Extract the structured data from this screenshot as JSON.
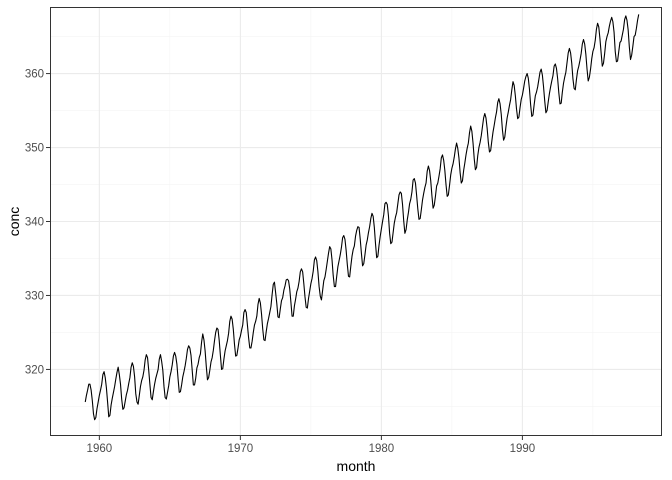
{
  "chart_data": {
    "type": "line",
    "title": "",
    "xlabel": "month",
    "ylabel": "conc",
    "xlim": [
      1956.5,
      1999.9
    ],
    "ylim": [
      311.0,
      369.0
    ],
    "x_ticks": [
      {
        "value": 1960,
        "label": "1960"
      },
      {
        "value": 1970,
        "label": "1970"
      },
      {
        "value": 1980,
        "label": "1980"
      },
      {
        "value": 1990,
        "label": "1990"
      }
    ],
    "y_ticks": [
      {
        "value": 320,
        "label": "320"
      },
      {
        "value": 330,
        "label": "330"
      },
      {
        "value": 340,
        "label": "340"
      },
      {
        "value": 350,
        "label": "350"
      },
      {
        "value": 360,
        "label": "360"
      }
    ],
    "grid": true,
    "legend": "none",
    "colors": {
      "line": "#000000",
      "grid_major": "#ebebeb",
      "grid_minor": "#f4f4f4",
      "panel_border": "#333333"
    },
    "series": [
      {
        "x_start": 1959.0,
        "x_step_months": 1,
        "values": [
          315.6,
          316.5,
          317.2,
          318.0,
          318.0,
          317.2,
          315.8,
          314.0,
          313.2,
          313.5,
          314.7,
          315.6,
          316.5,
          317.2,
          318.0,
          319.3,
          319.7,
          318.9,
          317.5,
          315.6,
          313.6,
          313.8,
          315.2,
          316.1,
          316.9,
          317.7,
          318.7,
          319.6,
          320.3,
          319.3,
          318.0,
          316.0,
          314.6,
          314.8,
          315.7,
          316.6,
          317.2,
          318.1,
          318.9,
          320.3,
          320.9,
          320.4,
          319.0,
          316.7,
          315.6,
          315.3,
          316.5,
          317.7,
          318.5,
          319.0,
          319.9,
          321.3,
          322.0,
          321.6,
          319.9,
          318.0,
          316.2,
          315.9,
          317.0,
          318.0,
          318.8,
          319.4,
          320.0,
          321.4,
          322.0,
          321.1,
          319.9,
          317.7,
          316.2,
          316.0,
          316.9,
          317.8,
          319.0,
          319.7,
          320.6,
          321.8,
          322.3,
          321.8,
          320.7,
          318.7,
          316.9,
          317.0,
          317.9,
          319.0,
          319.7,
          320.5,
          321.5,
          322.7,
          323.2,
          322.9,
          321.9,
          319.9,
          317.9,
          317.9,
          318.8,
          320.2,
          320.7,
          321.6,
          322.1,
          323.7,
          324.8,
          324.0,
          322.5,
          320.4,
          318.6,
          318.9,
          319.9,
          321.0,
          321.6,
          322.6,
          323.9,
          325.0,
          325.6,
          325.4,
          323.9,
          321.9,
          320.0,
          320.1,
          321.4,
          322.5,
          323.2,
          323.9,
          324.9,
          326.5,
          327.2,
          326.8,
          325.4,
          323.4,
          321.8,
          321.9,
          322.9,
          324.0,
          324.5,
          325.3,
          326.0,
          327.7,
          328.1,
          327.7,
          326.0,
          324.3,
          322.9,
          322.9,
          323.8,
          325.0,
          326.0,
          326.5,
          327.2,
          328.8,
          329.6,
          329.0,
          327.5,
          325.5,
          324.0,
          323.9,
          325.1,
          326.2,
          326.9,
          327.7,
          328.5,
          330.1,
          331.5,
          331.8,
          330.4,
          328.9,
          327.1,
          327.0,
          328.2,
          329.3,
          329.7,
          330.7,
          331.3,
          332.1,
          332.2,
          332.0,
          330.9,
          329.1,
          327.2,
          327.2,
          328.6,
          329.5,
          330.5,
          331.0,
          331.9,
          333.2,
          333.6,
          333.2,
          331.6,
          329.8,
          328.4,
          328.3,
          329.6,
          330.6,
          331.6,
          332.3,
          333.3,
          334.8,
          335.2,
          334.7,
          333.2,
          331.2,
          329.9,
          329.4,
          330.7,
          332.0,
          332.5,
          333.5,
          334.6,
          335.7,
          336.6,
          336.3,
          334.8,
          332.7,
          331.2,
          331.2,
          332.6,
          333.9,
          334.7,
          335.5,
          336.5,
          337.8,
          338.1,
          337.6,
          336.1,
          334.2,
          332.6,
          332.5,
          334.0,
          335.3,
          336.2,
          336.7,
          338.0,
          338.8,
          339.3,
          339.2,
          337.6,
          335.7,
          334.0,
          334.3,
          335.5,
          336.8,
          337.5,
          338.5,
          339.3,
          340.4,
          341.1,
          340.7,
          339.2,
          337.0,
          335.1,
          335.3,
          336.8,
          338.0,
          339.0,
          340.0,
          340.9,
          342.4,
          342.6,
          342.3,
          340.8,
          338.4,
          337.0,
          337.2,
          338.5,
          339.8,
          340.6,
          341.2,
          342.4,
          343.6,
          344.0,
          343.8,
          342.3,
          340.1,
          338.4,
          338.9,
          340.2,
          341.2,
          342.4,
          343.0,
          344.0,
          345.6,
          345.8,
          345.2,
          343.5,
          341.7,
          340.3,
          340.4,
          341.6,
          342.9,
          343.8,
          344.6,
          345.2,
          346.8,
          347.5,
          346.9,
          345.5,
          343.5,
          341.8,
          342.2,
          343.4,
          344.8,
          345.2,
          346.1,
          347.1,
          348.6,
          349.0,
          348.3,
          346.9,
          345.0,
          343.4,
          343.6,
          344.9,
          346.3,
          347.2,
          347.8,
          348.7,
          349.8,
          350.6,
          349.9,
          348.6,
          346.6,
          345.2,
          345.5,
          346.9,
          347.9,
          349.0,
          349.9,
          350.6,
          352.0,
          352.9,
          352.2,
          350.6,
          348.5,
          347.0,
          347.3,
          348.9,
          350.0,
          350.7,
          351.6,
          352.8,
          354.0,
          354.6,
          354.0,
          352.6,
          350.7,
          349.4,
          349.6,
          350.9,
          352.1,
          353.0,
          354.0,
          354.8,
          356.1,
          356.6,
          355.9,
          354.5,
          352.4,
          351.0,
          351.4,
          352.8,
          354.0,
          354.8,
          355.7,
          356.5,
          357.8,
          358.9,
          358.4,
          357.0,
          355.2,
          353.9,
          354.1,
          355.4,
          356.5,
          357.1,
          358.0,
          359.0,
          359.6,
          360.0,
          359.4,
          357.9,
          355.8,
          354.2,
          354.4,
          355.8,
          357.0,
          357.5,
          358.2,
          359.2,
          360.2,
          360.6,
          359.8,
          358.2,
          356.3,
          354.7,
          355.0,
          356.2,
          357.3,
          358.2,
          359.0,
          359.7,
          361.0,
          361.3,
          360.7,
          359.3,
          357.4,
          355.9,
          356.0,
          357.5,
          358.7,
          359.5,
          360.2,
          361.5,
          362.8,
          363.4,
          362.8,
          361.4,
          359.3,
          358.0,
          357.8,
          359.2,
          360.4,
          361.0,
          361.8,
          362.7,
          364.0,
          364.6,
          364.0,
          362.6,
          360.6,
          359.0,
          359.5,
          360.6,
          362.0,
          363.0,
          363.5,
          364.5,
          366.0,
          366.8,
          366.3,
          364.7,
          362.8,
          361.0,
          361.4,
          362.7,
          364.3,
          365.0,
          365.5,
          366.4,
          367.1,
          367.6,
          367.0,
          365.6,
          363.0,
          361.6,
          361.7,
          363.0,
          364.2,
          364.4,
          365.2,
          366.0,
          367.3,
          367.8,
          367.2,
          365.9,
          363.6,
          361.9,
          362.5,
          363.7,
          365.0,
          365.2,
          366.1,
          367.2,
          368.0
        ]
      }
    ]
  }
}
